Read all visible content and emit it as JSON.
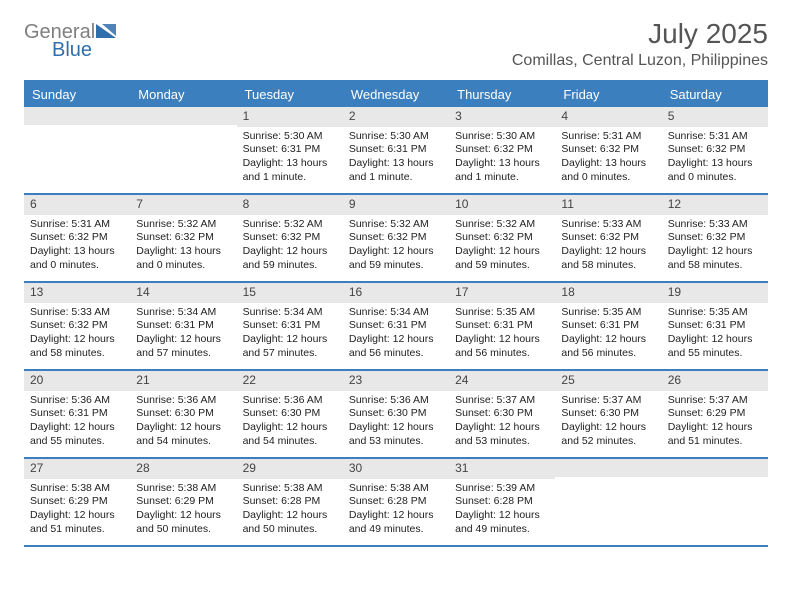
{
  "logo": {
    "text1": "General",
    "text2": "Blue",
    "text1_color": "#7f7f7f",
    "text2_color": "#2f6fab",
    "icon_color": "#2f6fab"
  },
  "header": {
    "month_title": "July 2025",
    "location": "Comillas, Central Luzon, Philippines"
  },
  "colors": {
    "header_bg": "#3b7fbf",
    "header_text": "#ffffff",
    "divider": "#3b7fbf",
    "daynum_bg": "#e8e8e8",
    "body_text": "#222222",
    "page_bg": "#ffffff"
  },
  "days_of_week": [
    "Sunday",
    "Monday",
    "Tuesday",
    "Wednesday",
    "Thursday",
    "Friday",
    "Saturday"
  ],
  "weeks": [
    [
      {
        "n": "",
        "sunrise": "",
        "sunset": "",
        "daylight": ""
      },
      {
        "n": "",
        "sunrise": "",
        "sunset": "",
        "daylight": ""
      },
      {
        "n": "1",
        "sunrise": "Sunrise: 5:30 AM",
        "sunset": "Sunset: 6:31 PM",
        "daylight": "Daylight: 13 hours and 1 minute."
      },
      {
        "n": "2",
        "sunrise": "Sunrise: 5:30 AM",
        "sunset": "Sunset: 6:31 PM",
        "daylight": "Daylight: 13 hours and 1 minute."
      },
      {
        "n": "3",
        "sunrise": "Sunrise: 5:30 AM",
        "sunset": "Sunset: 6:32 PM",
        "daylight": "Daylight: 13 hours and 1 minute."
      },
      {
        "n": "4",
        "sunrise": "Sunrise: 5:31 AM",
        "sunset": "Sunset: 6:32 PM",
        "daylight": "Daylight: 13 hours and 0 minutes."
      },
      {
        "n": "5",
        "sunrise": "Sunrise: 5:31 AM",
        "sunset": "Sunset: 6:32 PM",
        "daylight": "Daylight: 13 hours and 0 minutes."
      }
    ],
    [
      {
        "n": "6",
        "sunrise": "Sunrise: 5:31 AM",
        "sunset": "Sunset: 6:32 PM",
        "daylight": "Daylight: 13 hours and 0 minutes."
      },
      {
        "n": "7",
        "sunrise": "Sunrise: 5:32 AM",
        "sunset": "Sunset: 6:32 PM",
        "daylight": "Daylight: 13 hours and 0 minutes."
      },
      {
        "n": "8",
        "sunrise": "Sunrise: 5:32 AM",
        "sunset": "Sunset: 6:32 PM",
        "daylight": "Daylight: 12 hours and 59 minutes."
      },
      {
        "n": "9",
        "sunrise": "Sunrise: 5:32 AM",
        "sunset": "Sunset: 6:32 PM",
        "daylight": "Daylight: 12 hours and 59 minutes."
      },
      {
        "n": "10",
        "sunrise": "Sunrise: 5:32 AM",
        "sunset": "Sunset: 6:32 PM",
        "daylight": "Daylight: 12 hours and 59 minutes."
      },
      {
        "n": "11",
        "sunrise": "Sunrise: 5:33 AM",
        "sunset": "Sunset: 6:32 PM",
        "daylight": "Daylight: 12 hours and 58 minutes."
      },
      {
        "n": "12",
        "sunrise": "Sunrise: 5:33 AM",
        "sunset": "Sunset: 6:32 PM",
        "daylight": "Daylight: 12 hours and 58 minutes."
      }
    ],
    [
      {
        "n": "13",
        "sunrise": "Sunrise: 5:33 AM",
        "sunset": "Sunset: 6:32 PM",
        "daylight": "Daylight: 12 hours and 58 minutes."
      },
      {
        "n": "14",
        "sunrise": "Sunrise: 5:34 AM",
        "sunset": "Sunset: 6:31 PM",
        "daylight": "Daylight: 12 hours and 57 minutes."
      },
      {
        "n": "15",
        "sunrise": "Sunrise: 5:34 AM",
        "sunset": "Sunset: 6:31 PM",
        "daylight": "Daylight: 12 hours and 57 minutes."
      },
      {
        "n": "16",
        "sunrise": "Sunrise: 5:34 AM",
        "sunset": "Sunset: 6:31 PM",
        "daylight": "Daylight: 12 hours and 56 minutes."
      },
      {
        "n": "17",
        "sunrise": "Sunrise: 5:35 AM",
        "sunset": "Sunset: 6:31 PM",
        "daylight": "Daylight: 12 hours and 56 minutes."
      },
      {
        "n": "18",
        "sunrise": "Sunrise: 5:35 AM",
        "sunset": "Sunset: 6:31 PM",
        "daylight": "Daylight: 12 hours and 56 minutes."
      },
      {
        "n": "19",
        "sunrise": "Sunrise: 5:35 AM",
        "sunset": "Sunset: 6:31 PM",
        "daylight": "Daylight: 12 hours and 55 minutes."
      }
    ],
    [
      {
        "n": "20",
        "sunrise": "Sunrise: 5:36 AM",
        "sunset": "Sunset: 6:31 PM",
        "daylight": "Daylight: 12 hours and 55 minutes."
      },
      {
        "n": "21",
        "sunrise": "Sunrise: 5:36 AM",
        "sunset": "Sunset: 6:30 PM",
        "daylight": "Daylight: 12 hours and 54 minutes."
      },
      {
        "n": "22",
        "sunrise": "Sunrise: 5:36 AM",
        "sunset": "Sunset: 6:30 PM",
        "daylight": "Daylight: 12 hours and 54 minutes."
      },
      {
        "n": "23",
        "sunrise": "Sunrise: 5:36 AM",
        "sunset": "Sunset: 6:30 PM",
        "daylight": "Daylight: 12 hours and 53 minutes."
      },
      {
        "n": "24",
        "sunrise": "Sunrise: 5:37 AM",
        "sunset": "Sunset: 6:30 PM",
        "daylight": "Daylight: 12 hours and 53 minutes."
      },
      {
        "n": "25",
        "sunrise": "Sunrise: 5:37 AM",
        "sunset": "Sunset: 6:30 PM",
        "daylight": "Daylight: 12 hours and 52 minutes."
      },
      {
        "n": "26",
        "sunrise": "Sunrise: 5:37 AM",
        "sunset": "Sunset: 6:29 PM",
        "daylight": "Daylight: 12 hours and 51 minutes."
      }
    ],
    [
      {
        "n": "27",
        "sunrise": "Sunrise: 5:38 AM",
        "sunset": "Sunset: 6:29 PM",
        "daylight": "Daylight: 12 hours and 51 minutes."
      },
      {
        "n": "28",
        "sunrise": "Sunrise: 5:38 AM",
        "sunset": "Sunset: 6:29 PM",
        "daylight": "Daylight: 12 hours and 50 minutes."
      },
      {
        "n": "29",
        "sunrise": "Sunrise: 5:38 AM",
        "sunset": "Sunset: 6:28 PM",
        "daylight": "Daylight: 12 hours and 50 minutes."
      },
      {
        "n": "30",
        "sunrise": "Sunrise: 5:38 AM",
        "sunset": "Sunset: 6:28 PM",
        "daylight": "Daylight: 12 hours and 49 minutes."
      },
      {
        "n": "31",
        "sunrise": "Sunrise: 5:39 AM",
        "sunset": "Sunset: 6:28 PM",
        "daylight": "Daylight: 12 hours and 49 minutes."
      },
      {
        "n": "",
        "sunrise": "",
        "sunset": "",
        "daylight": ""
      },
      {
        "n": "",
        "sunrise": "",
        "sunset": "",
        "daylight": ""
      }
    ]
  ]
}
